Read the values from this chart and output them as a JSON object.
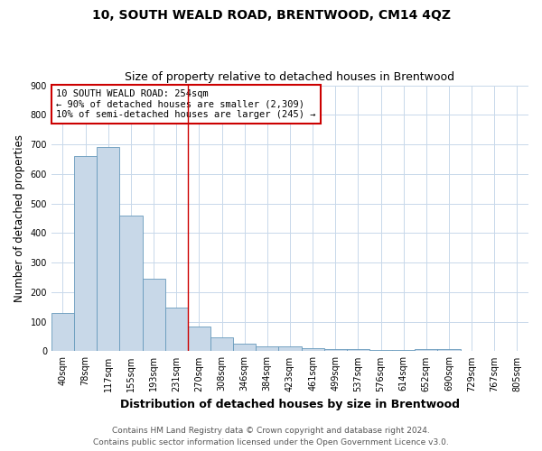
{
  "title": "10, SOUTH WEALD ROAD, BRENTWOOD, CM14 4QZ",
  "subtitle": "Size of property relative to detached houses in Brentwood",
  "xlabel": "Distribution of detached houses by size in Brentwood",
  "ylabel": "Number of detached properties",
  "footnote1": "Contains HM Land Registry data © Crown copyright and database right 2024.",
  "footnote2": "Contains public sector information licensed under the Open Government Licence v3.0.",
  "bin_labels": [
    "40sqm",
    "78sqm",
    "117sqm",
    "155sqm",
    "193sqm",
    "231sqm",
    "270sqm",
    "308sqm",
    "346sqm",
    "384sqm",
    "423sqm",
    "461sqm",
    "499sqm",
    "537sqm",
    "576sqm",
    "614sqm",
    "652sqm",
    "690sqm",
    "729sqm",
    "767sqm",
    "805sqm"
  ],
  "values": [
    130,
    660,
    690,
    460,
    247,
    148,
    83,
    48,
    25,
    18,
    18,
    10,
    8,
    8,
    5,
    5,
    7,
    7,
    0,
    0,
    0
  ],
  "bar_color": "#c8d8e8",
  "bar_edge_color": "#6699bb",
  "red_line_color": "#cc0000",
  "annotation_text": "10 SOUTH WEALD ROAD: 254sqm\n← 90% of detached houses are smaller (2,309)\n10% of semi-detached houses are larger (245) →",
  "annotation_box_color": "#ffffff",
  "annotation_box_edge": "#cc0000",
  "ylim": [
    0,
    900
  ],
  "yticks": [
    0,
    100,
    200,
    300,
    400,
    500,
    600,
    700,
    800,
    900
  ],
  "background_color": "#ffffff",
  "grid_color": "#c8d8ea",
  "title_fontsize": 10,
  "subtitle_fontsize": 9,
  "axis_label_fontsize": 8.5,
  "tick_fontsize": 7,
  "footnote_fontsize": 6.5
}
